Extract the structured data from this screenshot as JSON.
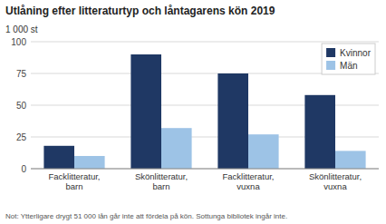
{
  "chart_data": {
    "type": "bar",
    "title": "Utlåning efter litteraturtyp och låntagarens kön 2019",
    "ylabel": "1 000 st",
    "note": "Not: Ytterligare drygt 51 000 lån går inte att fördela på kön. Sottunga bibliotek ingår inte.",
    "categories": [
      "Facklitteratur,\nbarn",
      "Skönlitteratur,\nbarn",
      "Facklitteratur,\nvuxna",
      "Skönlitteratur,\nvuxna"
    ],
    "series": [
      {
        "name": "Kvinnor",
        "color": "#1F3864",
        "values": [
          18,
          90,
          75,
          58
        ]
      },
      {
        "name": "Män",
        "color": "#9DC3E6",
        "values": [
          10,
          32,
          27,
          14
        ]
      }
    ],
    "ylim": [
      0,
      100
    ],
    "yticks": [
      0,
      25,
      50,
      75,
      100
    ],
    "grid": true,
    "legend": "upper right"
  }
}
